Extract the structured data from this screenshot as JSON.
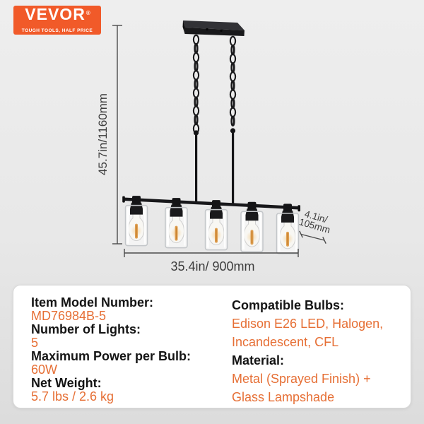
{
  "brand": {
    "logo_text": "VEVOR",
    "registered_mark": "®",
    "tagline": "TOUGH TOOLS, HALF PRICE",
    "logo_bg_color": "#F15A29",
    "logo_text_color": "#FFFFFF"
  },
  "diagram": {
    "num_lights": 5,
    "height_label": "45.7in/1160mm",
    "width_label": "35.4in/ 900mm",
    "depth_label_line1": "4.1in/",
    "depth_label_line2": "105mm",
    "fixture_color": "#1a1a1c",
    "filament_color": "#DFA052"
  },
  "specs": {
    "value_color": "#E66F35",
    "left": [
      {
        "label": "Item Model Number:",
        "value": "MD76984B-5"
      },
      {
        "label": "Number of Lights:",
        "value": "5"
      },
      {
        "label": "Maximum Power per Bulb:",
        "value": "60W"
      },
      {
        "label": "Net Weight:",
        "value": "5.7 lbs / 2.6 kg"
      }
    ],
    "right": [
      {
        "label": "Compatible Bulbs:",
        "value": "Edison E26 LED, Halogen, Incandescent, CFL"
      },
      {
        "label": "Material:",
        "value": "Metal (Sprayed Finish) + Glass Lampshade"
      }
    ]
  }
}
